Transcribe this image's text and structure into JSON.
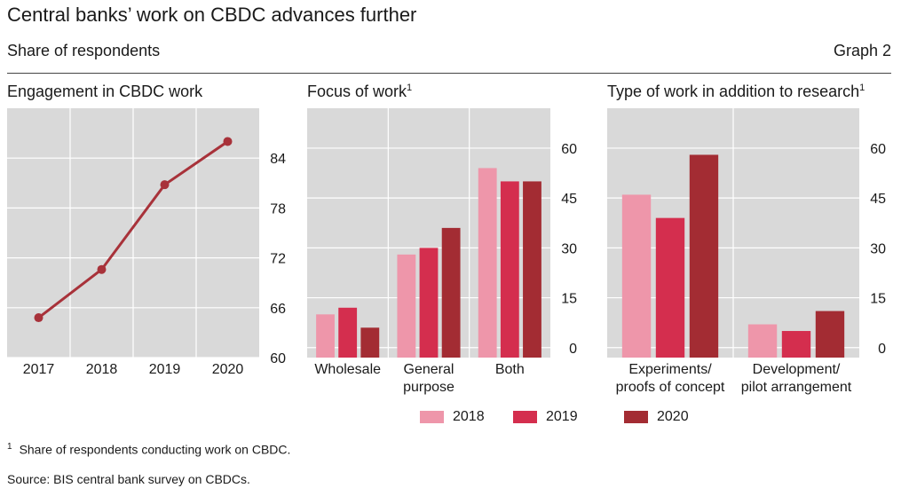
{
  "header": {
    "title": "Central banks’ work on CBDC advances further",
    "subtitle": "Share of respondents",
    "graph_label": "Graph 2"
  },
  "colors": {
    "2018": "#ee96aa",
    "2019": "#d42e4e",
    "2020": "#a32c33",
    "line": "#a8323a",
    "panel_bg": "#d9d9d9",
    "grid": "#ffffff"
  },
  "legend": [
    {
      "label": "2018",
      "color": "#ee96aa"
    },
    {
      "label": "2019",
      "color": "#d42e4e"
    },
    {
      "label": "2020",
      "color": "#a32c33"
    }
  ],
  "chart_data": [
    {
      "type": "line",
      "title": "Engagement in CBDC work",
      "title_sup": "",
      "x": [
        "2017",
        "2018",
        "2019",
        "2020"
      ],
      "series": [
        {
          "values": [
            64.8,
            70.6,
            80.8,
            86.0
          ]
        }
      ],
      "ylim": [
        60,
        90
      ],
      "yticks": [
        "60",
        "66",
        "72",
        "78",
        "84"
      ],
      "ytick_values": [
        60,
        66,
        72,
        78,
        84
      ],
      "grid": true
    },
    {
      "type": "bar",
      "title": "Focus of work",
      "title_sup": "1",
      "categories": [
        "Wholesale",
        "General purpose",
        "Both"
      ],
      "category_lines": [
        [
          "Wholesale"
        ],
        [
          "General",
          "purpose"
        ],
        [
          "Both"
        ]
      ],
      "series": [
        {
          "name": "2018",
          "values": [
            10,
            28,
            54
          ]
        },
        {
          "name": "2019",
          "values": [
            12,
            30,
            50
          ]
        },
        {
          "name": "2020",
          "values": [
            6,
            36,
            50
          ]
        }
      ],
      "ylim": [
        -3,
        72
      ],
      "yticks": [
        "0",
        "15",
        "30",
        "45",
        "60"
      ],
      "ytick_values": [
        0,
        15,
        30,
        45,
        60
      ],
      "grid": true
    },
    {
      "type": "bar",
      "title": "Type of work in addition to research",
      "title_sup": "1",
      "categories": [
        "Experiments/ proofs of concept",
        "Development/ pilot arrangement"
      ],
      "category_lines": [
        [
          "Experiments/",
          "proofs of concept"
        ],
        [
          "Development/",
          "pilot arrangement"
        ]
      ],
      "series": [
        {
          "name": "2018",
          "values": [
            46,
            7
          ]
        },
        {
          "name": "2019",
          "values": [
            39,
            5
          ]
        },
        {
          "name": "2020",
          "values": [
            58,
            11
          ]
        }
      ],
      "ylim": [
        -3,
        72
      ],
      "yticks": [
        "0",
        "15",
        "30",
        "45",
        "60"
      ],
      "ytick_values": [
        0,
        15,
        30,
        45,
        60
      ],
      "grid": true
    }
  ],
  "footnotes": {
    "note_marker": "1",
    "note_text": "Share of respondents conducting work on CBDC.",
    "source": "Source: BIS central bank survey on CBDCs."
  }
}
